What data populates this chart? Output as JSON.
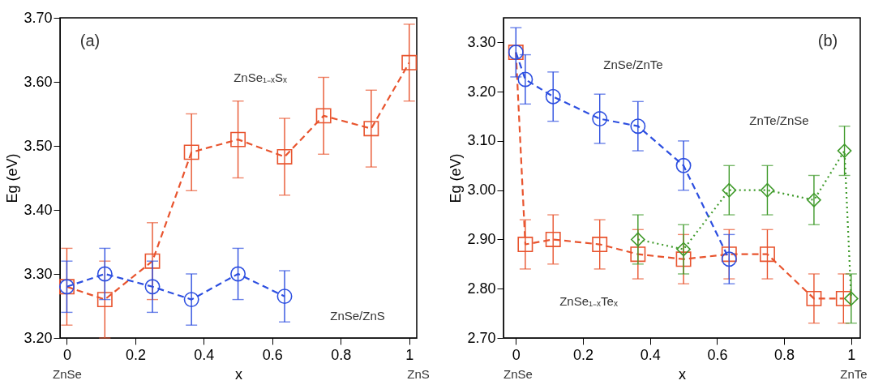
{
  "chart_data": [
    {
      "type": "line",
      "xlabel": "x",
      "ylabel": "Eg (eV)",
      "xlim": [
        -0.02,
        1.022
      ],
      "ylim": [
        3.2,
        3.7
      ],
      "xticks": [
        0,
        0.2,
        0.4,
        0.6,
        0.8,
        1
      ],
      "yticks": [
        {
          "value": 3.2,
          "label": "3.20"
        },
        {
          "value": 3.3,
          "label": "3.30"
        },
        {
          "value": 3.4,
          "label": "3.40"
        },
        {
          "value": 3.5,
          "label": "3.50"
        },
        {
          "value": 3.6,
          "label": "3.60"
        },
        {
          "value": 3.7,
          "label": "3.70"
        }
      ],
      "grid": false,
      "annotations": [
        "(a)",
        "ZnSe₁₋ₓSₓ",
        "ZnSe/ZnS",
        "ZnSe",
        "ZnS"
      ],
      "series": [
        {
          "color": "#e8542e",
          "marker": "square",
          "line_style": "dashed",
          "x": [
            0,
            0.111,
            0.25,
            0.364,
            0.5,
            0.636,
            0.75,
            0.889,
            1
          ],
          "values": [
            3.28,
            3.26,
            3.32,
            3.49,
            3.51,
            3.483,
            3.547,
            3.527,
            3.63
          ],
          "errors": [
            0.06,
            0.06,
            0.06,
            0.06,
            0.06,
            0.06,
            0.06,
            0.06,
            0.06
          ]
        },
        {
          "color": "#2d4fe0",
          "marker": "circle",
          "line_style": "dashed",
          "x": [
            0,
            0.111,
            0.25,
            0.364,
            0.5,
            0.636
          ],
          "values": [
            3.28,
            3.3,
            3.28,
            3.26,
            3.3,
            3.265
          ],
          "errors": [
            0.04,
            0.04,
            0.04,
            0.04,
            0.04,
            0.04
          ]
        }
      ]
    },
    {
      "type": "line",
      "xlabel": "x",
      "ylabel": "Eg (eV)",
      "xlim": [
        -0.037,
        1.027
      ],
      "ylim": [
        2.7,
        3.35
      ],
      "xticks": [
        0,
        0.2,
        0.4,
        0.6,
        0.8,
        1
      ],
      "yticks": [
        {
          "value": 2.7,
          "label": "2.70"
        },
        {
          "value": 2.8,
          "label": "2.80"
        },
        {
          "value": 2.9,
          "label": "2.90"
        },
        {
          "value": 3.0,
          "label": "3.00"
        },
        {
          "value": 3.1,
          "label": "3.10"
        },
        {
          "value": 3.2,
          "label": "3.20"
        },
        {
          "value": 3.3,
          "label": "3.30"
        }
      ],
      "grid": false,
      "annotations": [
        "(b)",
        "ZnSe/ZnTe",
        "ZnTe/ZnSe",
        "ZnSe₁₋ₓTeₓ",
        "ZnSe",
        "ZnTe"
      ],
      "series": [
        {
          "color": "#e8542e",
          "marker": "square",
          "line_style": "dashed",
          "x": [
            0,
            0.028,
            0.111,
            0.25,
            0.364,
            0.5,
            0.636,
            0.75,
            0.889,
            0.977
          ],
          "values": [
            3.28,
            2.89,
            2.9,
            2.89,
            2.87,
            2.86,
            2.87,
            2.87,
            2.78,
            2.78
          ],
          "errors": [
            null,
            0.05,
            0.05,
            0.05,
            0.05,
            0.05,
            0.05,
            0.05,
            0.05,
            0.05
          ]
        },
        {
          "color": "#2d4fe0",
          "marker": "circle",
          "line_style": "dashed",
          "x": [
            0,
            0.028,
            0.111,
            0.25,
            0.364,
            0.5,
            0.636
          ],
          "values": [
            3.28,
            3.225,
            3.19,
            3.145,
            3.13,
            3.05,
            2.86
          ],
          "errors": [
            0.05,
            0.05,
            0.05,
            0.05,
            0.05,
            0.05,
            0.05
          ]
        },
        {
          "color": "#3f9a2a",
          "marker": "diamond",
          "line_style": "dotted",
          "x": [
            0.364,
            0.5,
            0.636,
            0.75,
            0.889,
            0.98,
            1
          ],
          "values": [
            2.9,
            2.88,
            3.0,
            3.0,
            2.98,
            3.08,
            2.78
          ],
          "errors": [
            0.05,
            0.05,
            0.05,
            0.05,
            0.05,
            0.05,
            0.05
          ]
        }
      ]
    }
  ]
}
